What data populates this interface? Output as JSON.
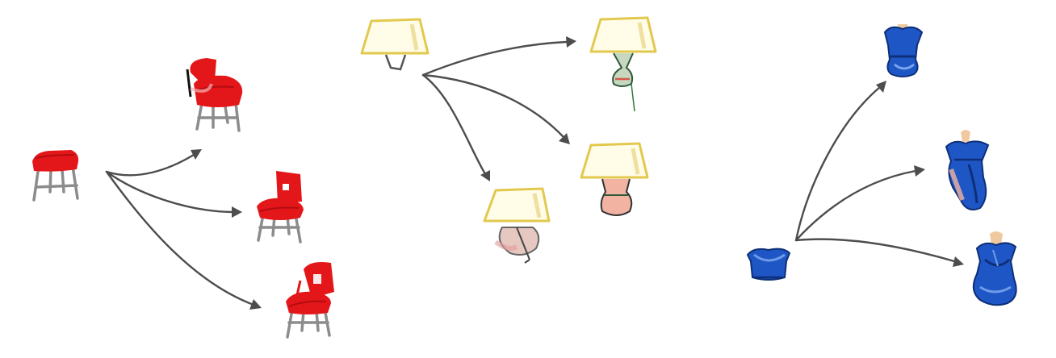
{
  "colors": {
    "arrow": "#4d4d4d",
    "chair_red": "#e3161a",
    "chair_leg": "#8c8c8c",
    "lamp_shade": "#fffce8",
    "lamp_outline": "#e2c94e",
    "dress_blue": "#1f56c6",
    "mannequin_skin": "#f0c9a0"
  },
  "groups": [
    {
      "id": "chairs",
      "source": {
        "icon": "stool-sketch-icon"
      },
      "variants": [
        {
          "icon": "chair-with-tall-back-sketch-icon"
        },
        {
          "icon": "chair-with-open-back-sketch-icon"
        },
        {
          "icon": "chair-with-frame-back-sketch-icon"
        }
      ]
    },
    {
      "id": "lamps",
      "source": {
        "icon": "lampshade-sketch-icon"
      },
      "variants": [
        {
          "icon": "lamp-with-green-base-sketch-icon"
        },
        {
          "icon": "lamp-with-pink-base-sketch-icon"
        },
        {
          "icon": "lamp-with-vase-base-sketch-icon"
        }
      ]
    },
    {
      "id": "dresses",
      "source": {
        "icon": "blue-top-sketch-icon"
      },
      "variants": [
        {
          "icon": "short-blue-dress-sketch-icon"
        },
        {
          "icon": "asymmetric-blue-dress-sketch-icon"
        },
        {
          "icon": "draped-blue-dress-sketch-icon"
        }
      ]
    }
  ]
}
